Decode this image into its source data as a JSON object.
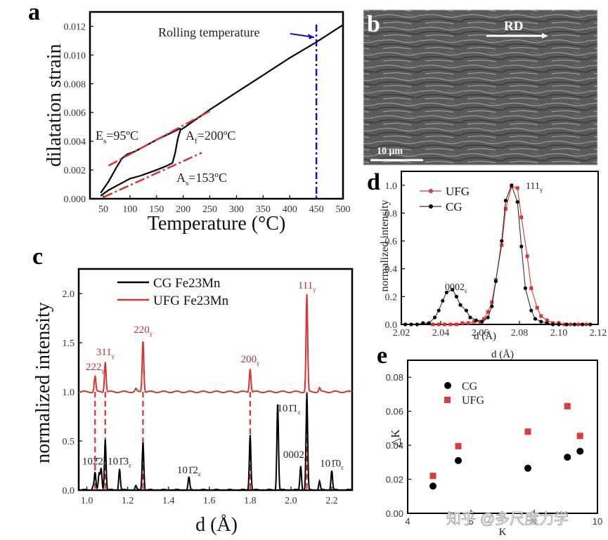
{
  "colors": {
    "black_series": "#000000",
    "red_series": "#e03030",
    "blue_marker": "#1010d0",
    "red_points": "#e03a3a"
  },
  "chart_data": [
    {
      "panel": "a",
      "type": "line",
      "xlabel": "Temperature (°C)",
      "ylabel": "dilatation strain",
      "xlim": [
        25,
        500
      ],
      "ylim": [
        0,
        0.013
      ],
      "xticks": [
        50,
        100,
        150,
        200,
        250,
        300,
        350,
        400,
        450,
        500
      ],
      "yticks": [
        "0.000",
        "0.002",
        "0.004",
        "0.006",
        "0.008",
        "0.010",
        "0.012"
      ],
      "series": [
        {
          "name": "heating",
          "x": [
            45,
            60,
            80,
            100,
            120,
            150,
            170,
            180,
            185,
            190,
            195,
            200,
            250,
            300,
            350,
            400,
            450,
            500
          ],
          "y": [
            0.0002,
            0.0006,
            0.001,
            0.0014,
            0.0016,
            0.002,
            0.0023,
            0.0025,
            0.0032,
            0.0042,
            0.0048,
            0.0049,
            0.0062,
            0.0074,
            0.0086,
            0.0098,
            0.0109,
            0.0121
          ]
        },
        {
          "name": "cooling",
          "x": [
            45,
            60,
            75,
            85,
            95,
            110,
            150,
            195
          ],
          "y": [
            0.0004,
            0.0012,
            0.0022,
            0.0028,
            0.0031,
            0.0033,
            0.0041,
            0.0049
          ]
        }
      ],
      "guides": [
        {
          "name": "upper-tangent",
          "x": [
            60,
            250
          ],
          "y": [
            0.0023,
            0.0061
          ]
        },
        {
          "name": "lower-tangent",
          "x": [
            50,
            235
          ],
          "y": [
            0.0001,
            0.0032
          ]
        },
        {
          "name": "rolling-temperature",
          "x": 450
        }
      ],
      "annotations": {
        "es": "E",
        "es_sub": "s",
        "es_val": "=95ºC",
        "af": "A",
        "af_sub": "f",
        "af_val": "=200ºC",
        "as": "A",
        "as_sub": "s",
        "as_val": "=153ºC",
        "rolling": "Rolling temperature"
      }
    },
    {
      "panel": "b",
      "type": "image",
      "labels": {
        "direction": "RD",
        "scale_bar": "10 μm"
      }
    },
    {
      "panel": "c",
      "type": "line",
      "xlabel": "d (Å)",
      "ylabel": "normalized intensity",
      "xlim": [
        0.96,
        2.3
      ],
      "ylim": [
        0,
        2.25
      ],
      "xticks": [
        "1.0",
        "1.2",
        "1.4",
        "1.6",
        "1.8",
        "2.0",
        "2.2"
      ],
      "yticks": [
        "0.0",
        "0.5",
        "1.0",
        "1.5",
        "2.0"
      ],
      "legend": [
        "CG Fe23Mn",
        "UFG Fe23Mn"
      ],
      "legend_position": "top-left",
      "series": [
        {
          "name": "CG Fe23Mn",
          "baseline": 0.0,
          "peaks": [
            [
              1.03,
              0.04
            ],
            [
              1.04,
              0.18
            ],
            [
              1.06,
              0.16
            ],
            [
              1.07,
              0.22
            ],
            [
              1.09,
              0.52
            ],
            [
              1.16,
              0.22
            ],
            [
              1.24,
              0.04
            ],
            [
              1.275,
              0.5
            ],
            [
              1.5,
              0.13
            ],
            [
              1.8,
              0.57
            ],
            [
              1.935,
              0.9
            ],
            [
              2.048,
              0.25
            ],
            [
              2.078,
              0.98
            ],
            [
              2.14,
              0.09
            ],
            [
              2.2,
              0.2
            ]
          ]
        },
        {
          "name": "UFG Fe23Mn",
          "baseline": 1.0,
          "peaks": [
            [
              1.04,
              1.16
            ],
            [
              1.09,
              1.31
            ],
            [
              1.24,
              1.03
            ],
            [
              1.275,
              1.53
            ],
            [
              1.8,
              1.24
            ],
            [
              2.078,
              1.99
            ],
            [
              2.14,
              1.04
            ]
          ]
        }
      ],
      "dashed_lines_x": [
        1.04,
        1.09,
        1.275,
        1.8,
        2.078
      ],
      "peak_labels_red": [
        {
          "text": "222",
          "sub": "γ",
          "x": 1.04
        },
        {
          "text": "311",
          "sub": "γ",
          "x": 1.09
        },
        {
          "text": "220",
          "sub": "γ",
          "x": 1.275
        },
        {
          "text": "200",
          "sub": "γ",
          "x": 1.8
        },
        {
          "text": "111",
          "sub": "γ",
          "x": 2.078
        }
      ],
      "peak_labels_black": [
        {
          "text": "102̄2",
          "sub": "ε"
        },
        {
          "text": "101̄3",
          "sub": "ε"
        },
        {
          "text": "101̄2",
          "sub": "ε"
        },
        {
          "text": "101̄1",
          "sub": "ε"
        },
        {
          "text": "0002",
          "sub": "ε"
        },
        {
          "text": "101̄0",
          "sub": "ε"
        }
      ]
    },
    {
      "panel": "d",
      "type": "line",
      "xlabel": "d (Å)",
      "ylabel": "normalized intensity",
      "xlim": [
        2.02,
        2.12
      ],
      "ylim": [
        0,
        1.1
      ],
      "xticks": [
        "2.02",
        "2.04",
        "2.06",
        "2.08",
        "2.10",
        "2.12"
      ],
      "yticks": [
        "0.0",
        "0.2",
        "0.4",
        "0.6",
        "0.8",
        "1.0"
      ],
      "legend": [
        "UFG",
        "CG"
      ],
      "legend_position": "top-left",
      "series": [
        {
          "name": "UFG",
          "x": [
            2.036,
            2.039,
            2.042,
            2.045,
            2.048,
            2.051,
            2.054,
            2.057,
            2.06,
            2.062,
            2.064,
            2.066,
            2.068,
            2.071,
            2.073,
            2.076,
            2.079,
            2.081,
            2.084,
            2.086,
            2.089,
            2.091,
            2.094,
            2.097,
            2.1,
            2.103,
            2.106,
            2.11,
            2.114
          ],
          "y": [
            0.0,
            0.0,
            0.0,
            0.0,
            0.0,
            0.01,
            0.01,
            0.02,
            0.02,
            0.04,
            0.09,
            0.16,
            0.32,
            0.57,
            0.83,
            0.99,
            0.98,
            0.77,
            0.49,
            0.26,
            0.12,
            0.06,
            0.03,
            0.01,
            0.01,
            0.0,
            0.0,
            0.0,
            0.0
          ]
        },
        {
          "name": "CG",
          "x": [
            2.022,
            2.025,
            2.028,
            2.031,
            2.034,
            2.037,
            2.039,
            2.041,
            2.043,
            2.046,
            2.048,
            2.05,
            2.053,
            2.055,
            2.058,
            2.061,
            2.064,
            2.066,
            2.068,
            2.071,
            2.073,
            2.076,
            2.079,
            2.081,
            2.083,
            2.086,
            2.088,
            2.091,
            2.094,
            2.097,
            2.1,
            2.104,
            2.108,
            2.112,
            2.116
          ],
          "y": [
            0.0,
            0.0,
            0.0,
            0.01,
            0.01,
            0.05,
            0.1,
            0.17,
            0.23,
            0.25,
            0.2,
            0.14,
            0.1,
            0.05,
            0.03,
            0.02,
            0.05,
            0.13,
            0.31,
            0.6,
            0.89,
            1.0,
            0.88,
            0.56,
            0.26,
            0.1,
            0.04,
            0.02,
            0.01,
            0.0,
            0.0,
            0.0,
            0.0,
            0.0,
            0.0
          ]
        }
      ],
      "annotations": [
        {
          "text": "0002",
          "sub": "ε",
          "x": 2.046
        },
        {
          "text": "111",
          "sub": "γ",
          "x": 2.082
        }
      ]
    },
    {
      "panel": "e",
      "type": "scatter",
      "title": "d (Å)",
      "xlabel": "K",
      "ylabel": "△K",
      "xlim": [
        4,
        10
      ],
      "ylim": [
        0,
        0.09
      ],
      "xticks": [
        "4",
        "6",
        "8",
        "10"
      ],
      "yticks": [
        "0.00",
        "0.02",
        "0.04",
        "0.06",
        "0.08"
      ],
      "legend": [
        "CG",
        "UFG"
      ],
      "legend_position": "top-left",
      "series": [
        {
          "name": "CG",
          "x": [
            4.8,
            5.6,
            7.8,
            9.05,
            9.45
          ],
          "y": [
            0.016,
            0.031,
            0.0265,
            0.033,
            0.0365
          ]
        },
        {
          "name": "UFG",
          "x": [
            4.8,
            5.6,
            7.8,
            9.05,
            9.45
          ],
          "y": [
            0.022,
            0.0395,
            0.048,
            0.063,
            0.0455
          ]
        }
      ],
      "watermark": "知乎 @多尺度力学"
    }
  ]
}
